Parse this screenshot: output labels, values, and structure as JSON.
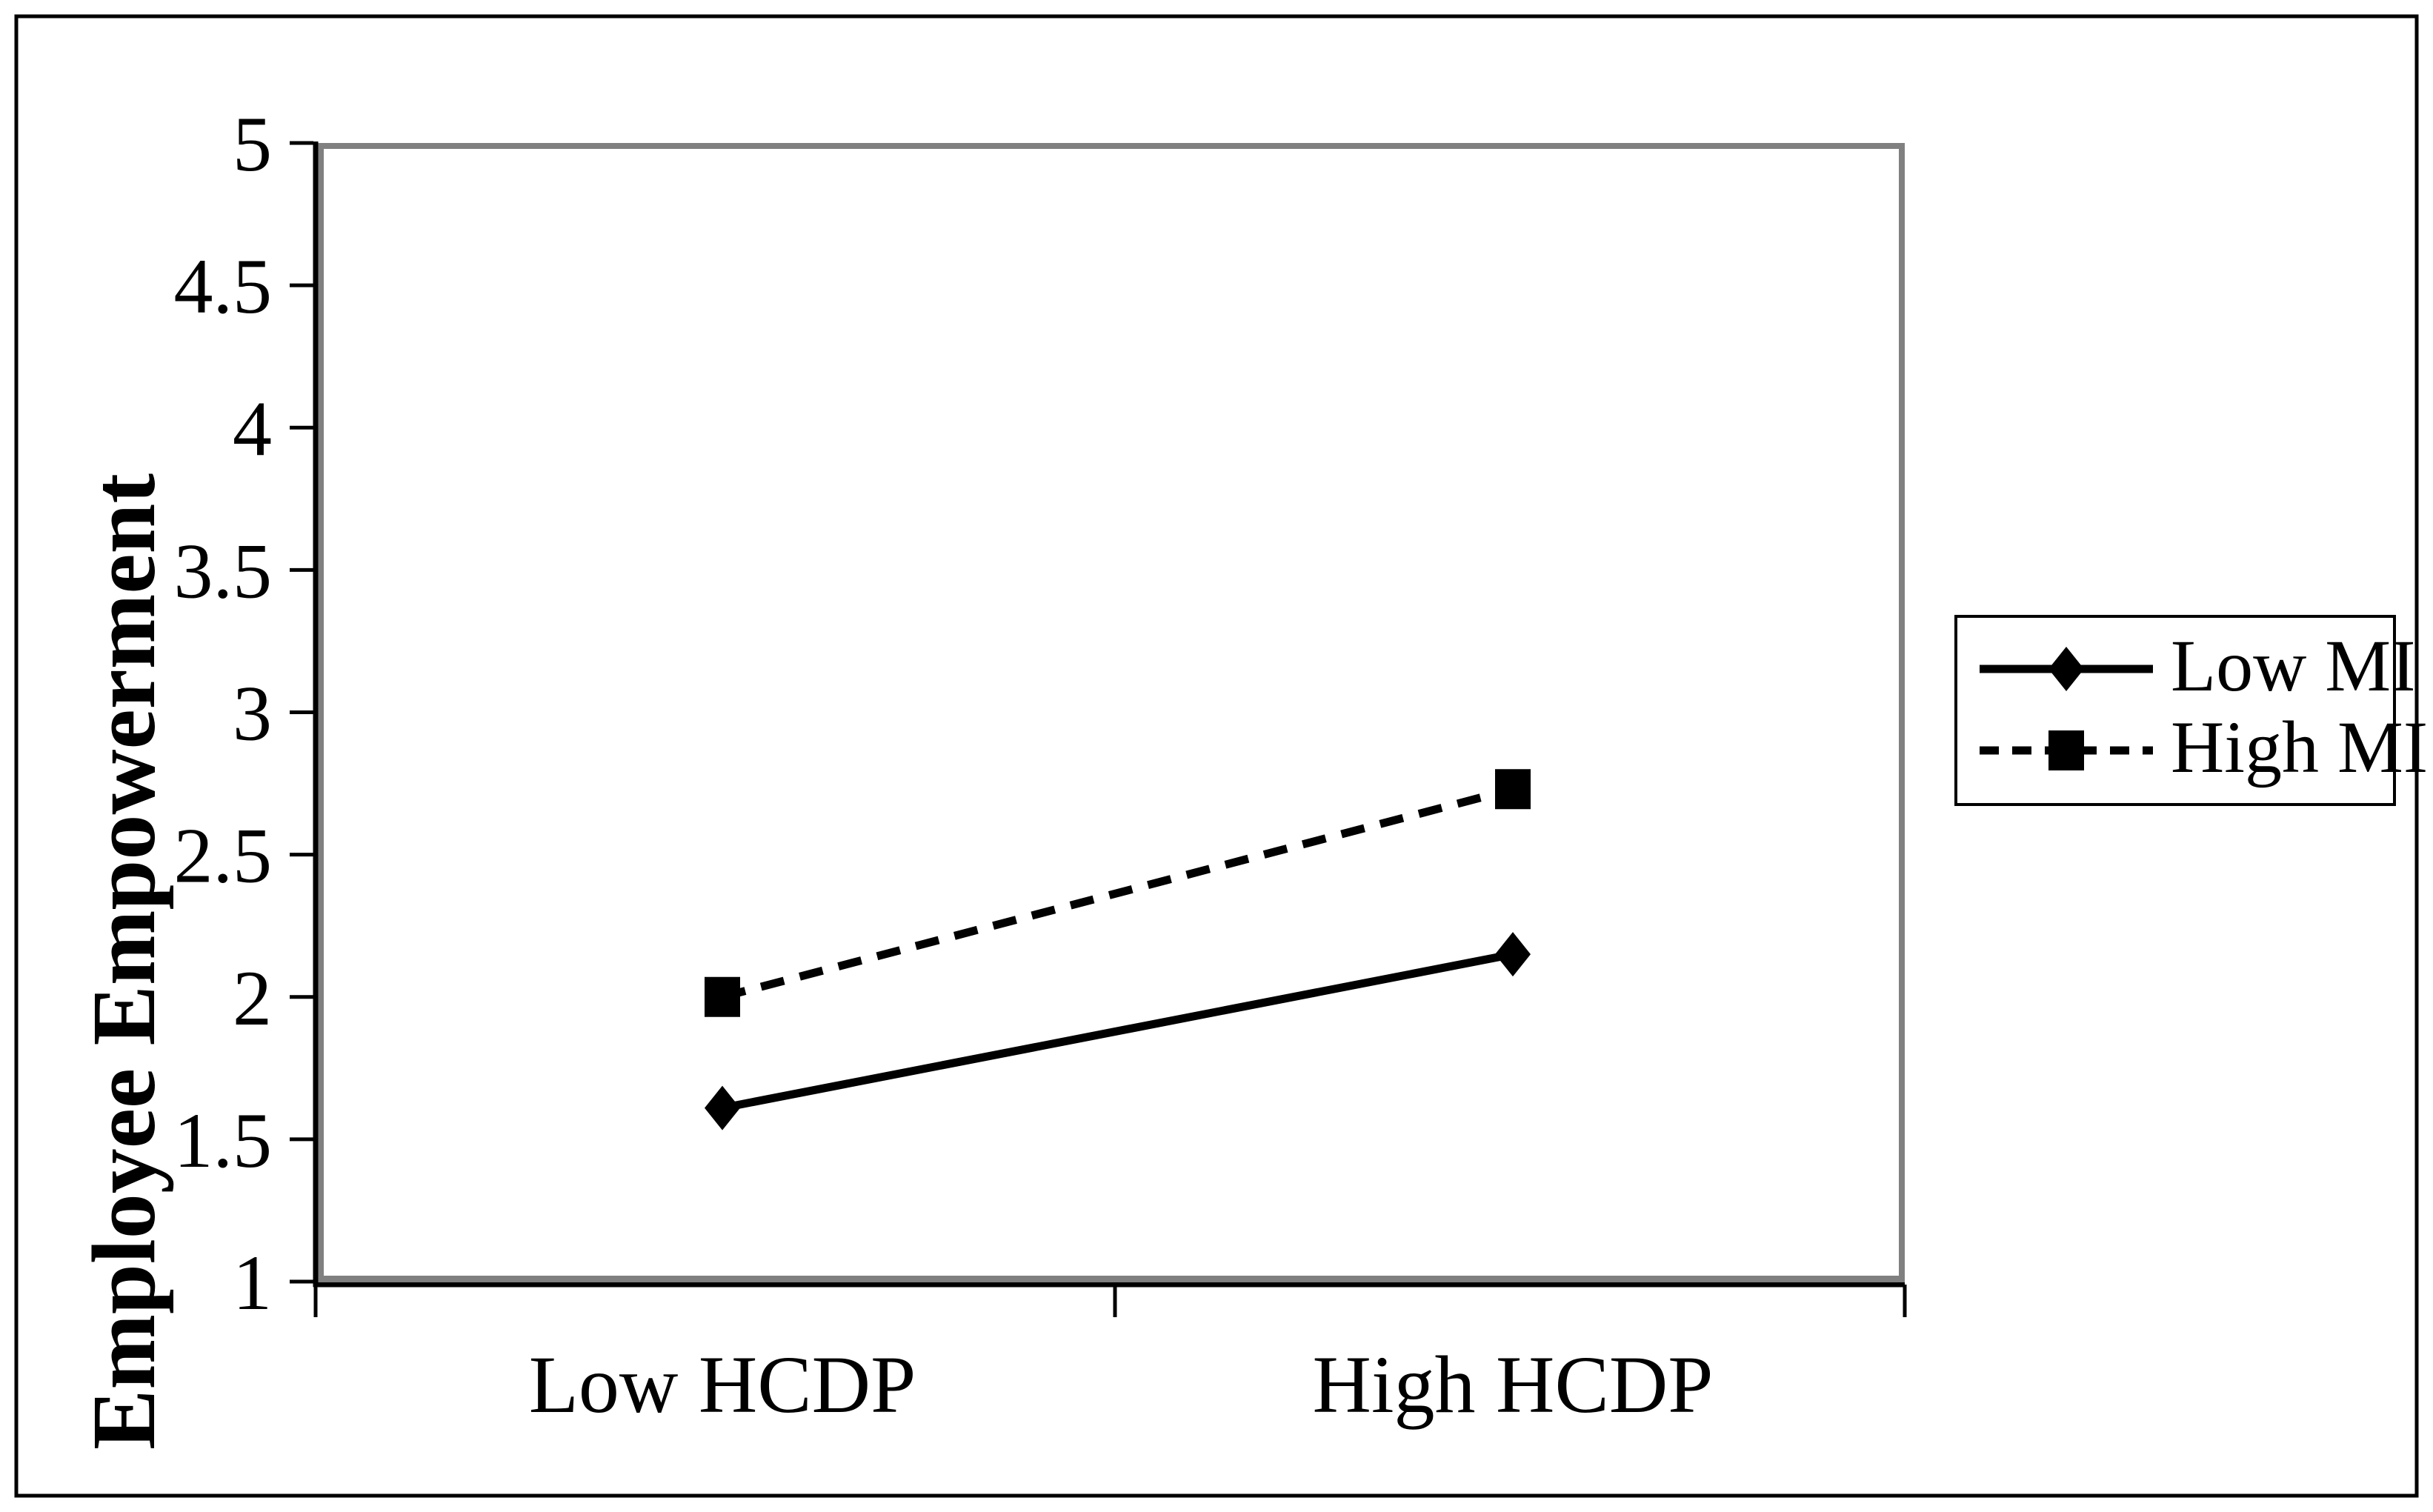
{
  "figure": {
    "background_color": "#ffffff",
    "frame_color": "#000000"
  },
  "chart_data": {
    "type": "line",
    "title": "",
    "xlabel": "",
    "ylabel": "Employee Empowerment",
    "categories": [
      "Low HCDP",
      "High HCDP"
    ],
    "series": [
      {
        "name": "Low MI",
        "values": [
          1.61,
          2.15
        ],
        "line_style": "solid",
        "marker": "diamond",
        "color": "#000000"
      },
      {
        "name": "High MI",
        "values": [
          2.0,
          2.73
        ],
        "line_style": "dashed",
        "marker": "square",
        "color": "#000000"
      }
    ],
    "ylim": [
      1,
      5
    ],
    "yticks": [
      5,
      4.5,
      4,
      3.5,
      3,
      2.5,
      2,
      1.5,
      1
    ],
    "grid": false,
    "legend_position": "right-outside",
    "plot_border_color": "#808080",
    "axis_color": "#000000",
    "text_color": "#000000"
  }
}
